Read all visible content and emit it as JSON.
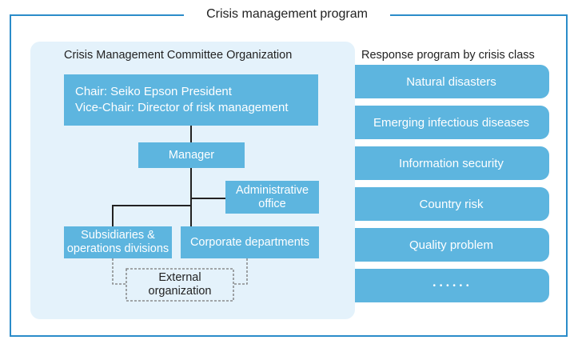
{
  "title": "Crisis management program",
  "committee": {
    "heading": "Crisis Management Committee Organization",
    "chair": "Chair: Seiko Epson President",
    "vice_chair": "Vice-Chair: Director of risk management",
    "manager": "Manager",
    "admin_office": "Administrative office",
    "subsidiaries": "Subsidiaries & operations divisions",
    "corporate": "Corporate departments",
    "external": "External organization"
  },
  "response": {
    "heading": "Response program by crisis class",
    "items": [
      "Natural disasters",
      "Emerging infectious diseases",
      "Information security",
      "Country risk",
      "Quality problem",
      "• • • • • •"
    ]
  },
  "colors": {
    "frame": "#2b8cc9",
    "box": "#5db5df",
    "panel": "#e4f2fb"
  }
}
